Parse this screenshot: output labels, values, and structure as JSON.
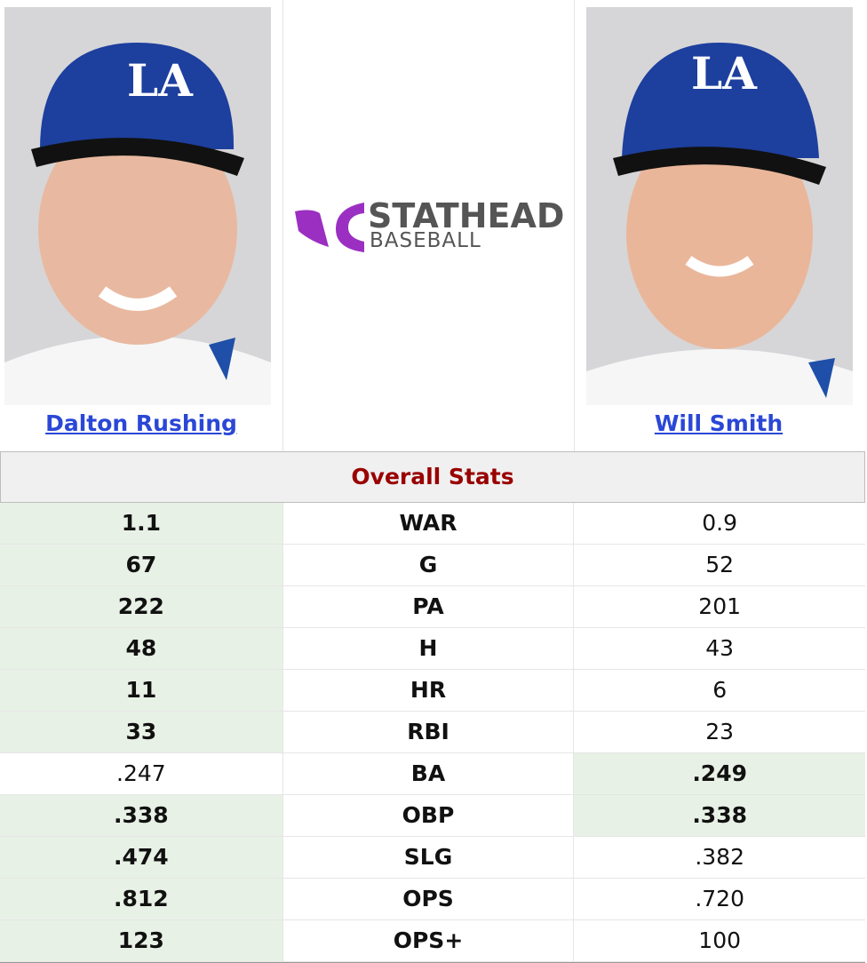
{
  "players": [
    {
      "name": "Dalton Rushing"
    },
    {
      "name": "Will Smith"
    }
  ],
  "logo": {
    "brand": "STATHEAD",
    "sport": "BASEBALL"
  },
  "section": {
    "title": "Overall Stats"
  },
  "table": {
    "rows": [
      {
        "stat": "WAR",
        "left": "1.1",
        "right": "0.9",
        "leader": "left"
      },
      {
        "stat": "G",
        "left": "67",
        "right": "52",
        "leader": "left"
      },
      {
        "stat": "PA",
        "left": "222",
        "right": "201",
        "leader": "left"
      },
      {
        "stat": "H",
        "left": "48",
        "right": "43",
        "leader": "left"
      },
      {
        "stat": "HR",
        "left": "11",
        "right": "6",
        "leader": "left"
      },
      {
        "stat": "RBI",
        "left": "33",
        "right": "23",
        "leader": "left"
      },
      {
        "stat": "BA",
        "left": ".247",
        "right": ".249",
        "leader": "right"
      },
      {
        "stat": "OBP",
        "left": ".338",
        "right": ".338",
        "leader": "both"
      },
      {
        "stat": "SLG",
        "left": ".474",
        "right": ".382",
        "leader": "left"
      },
      {
        "stat": "OPS",
        "left": ".812",
        "right": ".720",
        "leader": "left"
      },
      {
        "stat": "OPS+",
        "left": "123",
        "right": "100",
        "leader": "left"
      }
    ]
  }
}
